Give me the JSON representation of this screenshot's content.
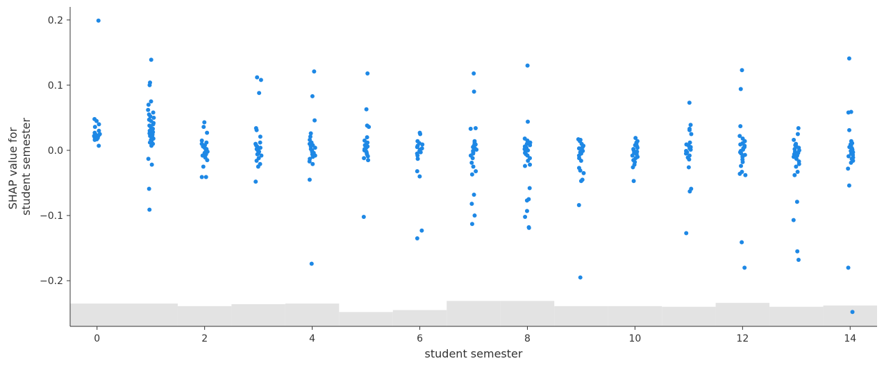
{
  "chart_data": {
    "type": "scatter",
    "title": "",
    "xlabel": "student semester",
    "ylabel": [
      "SHAP value for",
      "student semester"
    ],
    "xlim": [
      -0.5,
      14.5
    ],
    "ylim": [
      -0.27,
      0.22
    ],
    "x_ticks": [
      0,
      2,
      4,
      6,
      8,
      10,
      12,
      14
    ],
    "x_tick_labels": [
      "0",
      "2",
      "4",
      "6",
      "8",
      "10",
      "12",
      "14"
    ],
    "y_ticks": [
      -0.2,
      -0.1,
      0.0,
      0.1,
      0.2
    ],
    "y_tick_labels": [
      "−0.2",
      "−0.1",
      "0.0",
      "0.1",
      "0.2"
    ],
    "grid": false,
    "point_color": "#1E88E5",
    "histogram_color": "#E3E3E3",
    "histogram_bars": [
      {
        "x": 0,
        "top": -0.235
      },
      {
        "x": 1,
        "top": -0.235
      },
      {
        "x": 2,
        "top": -0.239
      },
      {
        "x": 3,
        "top": -0.236
      },
      {
        "x": 4,
        "top": -0.235
      },
      {
        "x": 5,
        "top": -0.248
      },
      {
        "x": 6,
        "top": -0.245
      },
      {
        "x": 7,
        "top": -0.231
      },
      {
        "x": 8,
        "top": -0.231
      },
      {
        "x": 9,
        "top": -0.239
      },
      {
        "x": 10,
        "top": -0.239
      },
      {
        "x": 11,
        "top": -0.24
      },
      {
        "x": 12,
        "top": -0.234
      },
      {
        "x": 13,
        "top": -0.24
      },
      {
        "x": 14,
        "top": -0.238
      }
    ],
    "series": [
      {
        "x": 0,
        "values": [
          0.199,
          0.048,
          0.045,
          0.04,
          0.036,
          0.03,
          0.027,
          0.025,
          0.024,
          0.023,
          0.022,
          0.021,
          0.021,
          0.02,
          0.02,
          0.019,
          0.019,
          0.018,
          0.017,
          0.016,
          0.007
        ]
      },
      {
        "x": 1,
        "values": [
          0.139,
          0.104,
          0.1,
          0.075,
          0.07,
          0.062,
          0.058,
          0.055,
          0.052,
          0.05,
          0.047,
          0.045,
          0.042,
          0.04,
          0.038,
          0.035,
          0.033,
          0.03,
          0.028,
          0.026,
          0.024,
          0.022,
          0.02,
          0.018,
          0.016,
          0.014,
          0.012,
          0.01,
          0.007,
          -0.013,
          -0.022,
          -0.059,
          -0.091
        ]
      },
      {
        "x": 2,
        "values": [
          0.043,
          0.036,
          0.027,
          0.015,
          0.012,
          0.01,
          0.008,
          0.006,
          0.004,
          0.002,
          0.0,
          -0.002,
          -0.004,
          -0.006,
          -0.008,
          -0.011,
          -0.015,
          -0.025,
          -0.041,
          -0.041
        ]
      },
      {
        "x": 3,
        "values": [
          0.112,
          0.108,
          0.088,
          0.034,
          0.031,
          0.021,
          0.012,
          0.01,
          0.008,
          0.006,
          0.004,
          0.002,
          0.0,
          -0.002,
          -0.004,
          -0.006,
          -0.008,
          -0.012,
          -0.016,
          -0.021,
          -0.025,
          -0.048
        ]
      },
      {
        "x": 4,
        "values": [
          0.121,
          0.083,
          0.046,
          0.026,
          0.021,
          0.016,
          0.012,
          0.01,
          0.008,
          0.006,
          0.004,
          0.002,
          0.0,
          -0.002,
          -0.004,
          -0.006,
          -0.008,
          -0.01,
          -0.013,
          -0.017,
          -0.021,
          -0.045,
          -0.174
        ]
      },
      {
        "x": 5,
        "values": [
          0.118,
          0.063,
          0.038,
          0.036,
          0.02,
          0.015,
          0.012,
          0.01,
          0.008,
          0.006,
          0.004,
          0.002,
          0.0,
          -0.002,
          -0.004,
          -0.006,
          -0.009,
          -0.012,
          -0.015,
          -0.102
        ]
      },
      {
        "x": 6,
        "values": [
          0.027,
          0.025,
          0.014,
          0.011,
          0.009,
          0.007,
          0.005,
          0.003,
          0.001,
          -0.001,
          -0.003,
          -0.005,
          -0.008,
          -0.013,
          -0.032,
          -0.04,
          -0.123,
          -0.135
        ]
      },
      {
        "x": 7,
        "values": [
          0.118,
          0.09,
          0.034,
          0.033,
          0.014,
          0.011,
          0.009,
          0.007,
          0.005,
          0.003,
          0.001,
          -0.001,
          -0.003,
          -0.005,
          -0.008,
          -0.012,
          -0.019,
          -0.025,
          -0.032,
          -0.037,
          -0.068,
          -0.082,
          -0.1,
          -0.113
        ]
      },
      {
        "x": 8,
        "values": [
          0.13,
          0.044,
          0.018,
          0.015,
          0.012,
          0.01,
          0.008,
          0.006,
          0.004,
          0.002,
          0.0,
          -0.002,
          -0.004,
          -0.006,
          -0.008,
          -0.012,
          -0.016,
          -0.022,
          -0.024,
          -0.058,
          -0.075,
          -0.077,
          -0.093,
          -0.102,
          -0.118,
          -0.119
        ]
      },
      {
        "x": 9,
        "values": [
          0.017,
          0.016,
          0.014,
          0.01,
          0.007,
          0.005,
          0.003,
          0.001,
          -0.001,
          -0.003,
          -0.005,
          -0.008,
          -0.012,
          -0.016,
          -0.027,
          -0.031,
          -0.035,
          -0.045,
          -0.047,
          -0.084,
          -0.195
        ]
      },
      {
        "x": 10,
        "values": [
          0.019,
          0.014,
          0.012,
          0.01,
          0.008,
          0.006,
          0.004,
          0.002,
          0.0,
          -0.002,
          -0.004,
          -0.006,
          -0.008,
          -0.01,
          -0.012,
          -0.015,
          -0.018,
          -0.022,
          -0.026,
          -0.047
        ]
      },
      {
        "x": 11,
        "values": [
          0.073,
          0.039,
          0.033,
          0.031,
          0.025,
          0.012,
          0.009,
          0.007,
          0.005,
          0.003,
          0.001,
          -0.001,
          -0.003,
          -0.005,
          -0.008,
          -0.011,
          -0.014,
          -0.026,
          -0.059,
          -0.063,
          -0.127
        ]
      },
      {
        "x": 12,
        "values": [
          0.123,
          0.094,
          0.037,
          0.022,
          0.018,
          0.014,
          0.011,
          0.009,
          0.007,
          0.005,
          0.003,
          0.001,
          -0.001,
          -0.003,
          -0.005,
          -0.007,
          -0.01,
          -0.014,
          -0.018,
          -0.024,
          -0.033,
          -0.036,
          -0.038,
          -0.141,
          -0.18
        ]
      },
      {
        "x": 13,
        "values": [
          0.034,
          0.025,
          0.016,
          0.01,
          0.008,
          0.006,
          0.004,
          0.002,
          0.0,
          -0.002,
          -0.004,
          -0.006,
          -0.008,
          -0.01,
          -0.013,
          -0.017,
          -0.021,
          -0.025,
          -0.033,
          -0.038,
          -0.079,
          -0.107,
          -0.155,
          -0.168
        ]
      },
      {
        "x": 14,
        "values": [
          0.141,
          0.059,
          0.058,
          0.031,
          0.014,
          0.011,
          0.009,
          0.007,
          0.005,
          0.003,
          0.001,
          -0.001,
          -0.003,
          -0.005,
          -0.007,
          -0.009,
          -0.011,
          -0.013,
          -0.016,
          -0.019,
          -0.028,
          -0.054,
          -0.18,
          -0.248
        ]
      }
    ]
  }
}
